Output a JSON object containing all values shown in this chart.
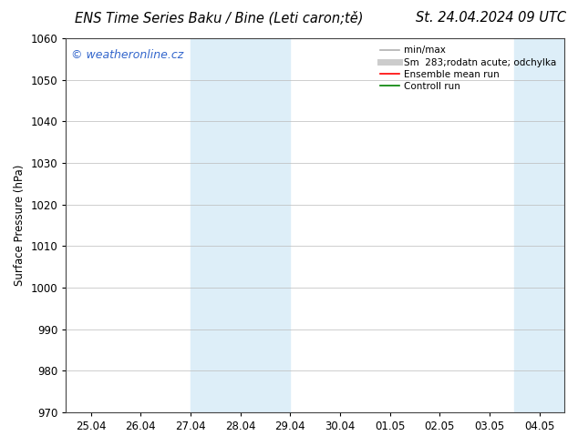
{
  "title_left": "ENS Time Series Baku / Bine (Leti caron;tě)",
  "title_right": "St. 24.04.2024 09 UTC",
  "ylabel": "Surface Pressure (hPa)",
  "ylim": [
    970,
    1060
  ],
  "yticks": [
    970,
    980,
    990,
    1000,
    1010,
    1020,
    1030,
    1040,
    1050,
    1060
  ],
  "xtick_labels": [
    "25.04",
    "26.04",
    "27.04",
    "28.04",
    "29.04",
    "30.04",
    "01.05",
    "02.05",
    "03.05",
    "04.05"
  ],
  "xtick_positions": [
    0,
    1,
    2,
    3,
    4,
    5,
    6,
    7,
    8,
    9
  ],
  "xlim": [
    -0.5,
    9.5
  ],
  "shaded_bands": [
    {
      "x_start": 2,
      "x_end": 4,
      "color": "#ddeef8"
    },
    {
      "x_start": 8.5,
      "x_end": 9.5,
      "color": "#ddeef8"
    }
  ],
  "watermark_text": "© weatheronline.cz",
  "watermark_color": "#3366cc",
  "legend_entries": [
    {
      "label": "min/max",
      "color": "#b0b0b0",
      "lw": 1.2,
      "linestyle": "-"
    },
    {
      "label": "Sm  283;rodatn acute; odchylka",
      "color": "#cccccc",
      "lw": 5,
      "linestyle": "-"
    },
    {
      "label": "Ensemble mean run",
      "color": "red",
      "lw": 1.2,
      "linestyle": "-"
    },
    {
      "label": "Controll run",
      "color": "green",
      "lw": 1.2,
      "linestyle": "-"
    }
  ],
  "background_color": "#ffffff",
  "grid_color": "#bbbbbb",
  "title_fontsize": 10.5,
  "axis_fontsize": 8.5,
  "legend_fontsize": 7.5,
  "watermark_fontsize": 9
}
